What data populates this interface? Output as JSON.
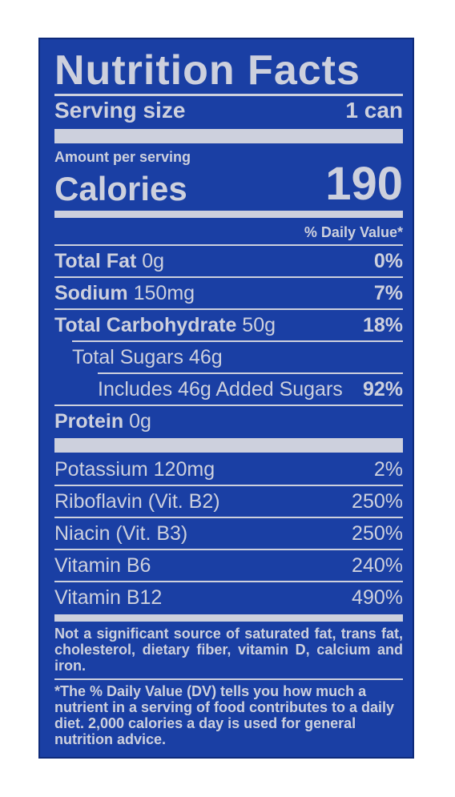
{
  "title": "Nutrition Facts",
  "serving": {
    "label": "Serving size",
    "value": "1 can"
  },
  "amount_per_serving": "Amount per serving",
  "calories": {
    "label": "Calories",
    "value": "190"
  },
  "dv_header": "% Daily Value*",
  "nutrients": [
    {
      "name": "Total Fat",
      "amount": "0g",
      "dv": "0%"
    },
    {
      "name": "Sodium",
      "amount": "150mg",
      "dv": "7%"
    },
    {
      "name": "Total Carbohydrate",
      "amount": "50g",
      "dv": "18%"
    },
    {
      "name": "Total Sugars 46g",
      "amount": "",
      "dv": ""
    },
    {
      "name": "Includes 46g Added Sugars",
      "amount": "",
      "dv": "92%"
    },
    {
      "name": "Protein",
      "amount": "0g",
      "dv": ""
    }
  ],
  "vitamins": [
    {
      "name": "Potassium 120mg",
      "dv": "2%"
    },
    {
      "name": "Riboflavin (Vit. B2)",
      "dv": "250%"
    },
    {
      "name": "Niacin (Vit. B3)",
      "dv": "250%"
    },
    {
      "name": "Vitamin B6",
      "dv": "240%"
    },
    {
      "name": "Vitamin B12",
      "dv": "490%"
    }
  ],
  "not_significant": "Not a significant source of saturated fat, trans fat, cholesterol, dietary fiber, vitamin D, calcium and iron.",
  "dv_footnote": "*The % Daily Value (DV) tells you how much a nutrient in a serving of food contributes to a daily diet. 2,000 calories a day is used for general nutrition advice."
}
